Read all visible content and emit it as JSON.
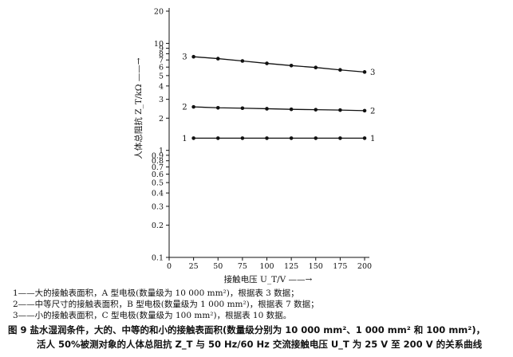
{
  "chart_data": {
    "type": "line",
    "xlabel": "接触电压 U_T/V",
    "ylabel": "人体总阻抗 Z_T/kΩ",
    "x": [
      25,
      50,
      75,
      100,
      125,
      150,
      175,
      200
    ],
    "xlim": [
      0,
      200
    ],
    "ylim": [
      0.1,
      20
    ],
    "yscale": "log",
    "x_ticks": [
      "0",
      "25",
      "50",
      "75",
      "100",
      "125",
      "150",
      "175",
      "200"
    ],
    "y_ticks": [
      "0.1",
      "0.2",
      "0.3",
      "0.4",
      "0.5",
      "0.6",
      "0.7",
      "0.8",
      "0.9",
      "1",
      "2",
      "3",
      "4",
      "5",
      "6",
      "7",
      "8",
      "9",
      "10",
      "20"
    ],
    "y_tick_values": [
      0.1,
      0.2,
      0.3,
      0.4,
      0.5,
      0.6,
      0.7,
      0.8,
      0.9,
      1,
      2,
      3,
      4,
      5,
      6,
      7,
      8,
      9,
      10,
      20
    ],
    "grid": false,
    "series": [
      {
        "name": "1",
        "values": [
          1.3,
          1.3,
          1.3,
          1.3,
          1.3,
          1.3,
          1.3,
          1.3
        ]
      },
      {
        "name": "2",
        "values": [
          2.55,
          2.5,
          2.48,
          2.45,
          2.42,
          2.4,
          2.38,
          2.35
        ]
      },
      {
        "name": "3",
        "values": [
          7.5,
          7.2,
          6.85,
          6.5,
          6.2,
          5.95,
          5.65,
          5.4
        ]
      }
    ]
  },
  "legend": [
    "1——大的接触表面积，A 型电极(数量级为 10 000 mm²)，根据表 3 数据；",
    "2——中等尺寸的接触表面积，B 型电极(数量级为 1 000 mm²)，根据表 7 数据；",
    "3——小的接触表面积，C 型电极(数量级为 100 mm²)，根据表 10 数据。"
  ],
  "caption": {
    "line1": "图 9  盐水湿润条件，大的、中等的和小的接触表面积(数量级分别为 10 000 mm²、1 000 mm² 和 100 mm²)，",
    "line2": "活人 50%被测对象的人体总阻抗 Z_T 与 50 Hz/60 Hz 交流接触电压 U_T 为 25 V 至 200 V 的关系曲线"
  }
}
